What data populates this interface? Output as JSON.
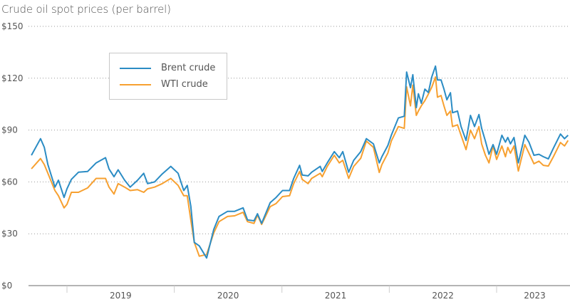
{
  "chart_data": {
    "type": "line",
    "title": "Crude oil spot prices (per barrel)",
    "xlabel": "",
    "ylabel": "",
    "ylim": [
      0,
      150
    ],
    "yticks": [
      0,
      30,
      60,
      90,
      120,
      150
    ],
    "ytick_labels": [
      "$0",
      "$30",
      "$60",
      "$90",
      "$120",
      "$150"
    ],
    "xlim": [
      "2018-08-25",
      "2023-09-05"
    ],
    "xtick_labels": [
      "2019",
      "2020",
      "2021",
      "2022",
      "2023"
    ],
    "grid": "horizontal-dotted",
    "legend_placement": "top-left",
    "dates": [
      "2018-09-02",
      "2018-10-03",
      "2018-10-16",
      "2018-10-28",
      "2018-11-21",
      "2018-12-03",
      "2018-12-22",
      "2019-01-01",
      "2019-01-16",
      "2019-02-09",
      "2019-03-12",
      "2019-04-10",
      "2019-05-12",
      "2019-05-24",
      "2019-06-10",
      "2019-06-24",
      "2019-07-16",
      "2019-08-04",
      "2019-08-29",
      "2019-09-19",
      "2019-10-02",
      "2019-10-26",
      "2019-11-21",
      "2019-12-20",
      "2020-01-14",
      "2020-02-02",
      "2020-02-14",
      "2020-02-26",
      "2020-03-09",
      "2020-03-26",
      "2020-04-20",
      "2020-05-14",
      "2020-06-01",
      "2020-06-30",
      "2020-07-24",
      "2020-08-22",
      "2020-09-06",
      "2020-09-28",
      "2020-10-10",
      "2020-10-24",
      "2020-11-22",
      "2020-12-12",
      "2021-01-03",
      "2021-01-27",
      "2021-02-10",
      "2021-03-02",
      "2021-03-11",
      "2021-03-31",
      "2021-04-12",
      "2021-05-11",
      "2021-05-18",
      "2021-06-04",
      "2021-06-28",
      "2021-07-15",
      "2021-07-27",
      "2021-08-16",
      "2021-09-02",
      "2021-09-26",
      "2021-10-15",
      "2021-11-08",
      "2021-11-28",
      "2021-12-07",
      "2021-12-27",
      "2022-01-08",
      "2022-02-01",
      "2022-02-21",
      "2022-03-01",
      "2022-03-14",
      "2022-03-22",
      "2022-04-03",
      "2022-04-10",
      "2022-04-20",
      "2022-05-02",
      "2022-05-14",
      "2022-05-26",
      "2022-06-07",
      "2022-06-14",
      "2022-06-26",
      "2022-07-06",
      "2022-07-16",
      "2022-07-28",
      "2022-08-04",
      "2022-08-21",
      "2022-09-02",
      "2022-09-19",
      "2022-10-04",
      "2022-10-18",
      "2022-11-02",
      "2022-11-11",
      "2022-11-24",
      "2022-12-06",
      "2022-12-20",
      "2023-01-01",
      "2023-01-19",
      "2023-01-31",
      "2023-02-08",
      "2023-02-17",
      "2023-03-01",
      "2023-03-16",
      "2023-04-07",
      "2023-04-21",
      "2023-05-08",
      "2023-05-25",
      "2023-06-09",
      "2023-06-26",
      "2023-07-13",
      "2023-08-06",
      "2023-08-20",
      "2023-09-01"
    ],
    "series": [
      {
        "name": "Brent crude",
        "color": "#2b8cc4",
        "values": [
          75.4,
          85,
          80,
          70,
          57,
          61,
          51,
          56,
          61.5,
          65.6,
          66,
          71,
          74,
          67.5,
          63,
          67,
          61,
          57,
          61,
          65,
          59,
          60,
          64.6,
          69,
          65,
          55,
          58,
          46,
          25,
          23,
          16,
          32.5,
          40,
          43,
          43,
          45,
          38,
          37.5,
          41.6,
          36,
          48,
          51,
          55,
          55,
          62,
          69.6,
          64,
          63.5,
          65.6,
          69,
          66,
          71,
          77.5,
          74,
          77.5,
          65.6,
          72.5,
          77.5,
          85,
          82,
          71,
          74.6,
          81,
          87,
          97,
          98,
          123.6,
          114.5,
          122,
          103,
          111,
          105.5,
          113.7,
          111.7,
          121,
          127,
          119,
          119,
          113.7,
          107.5,
          111.6,
          100,
          101,
          92,
          84,
          98.5,
          92,
          99,
          91,
          83.6,
          76,
          81.6,
          76,
          87,
          83,
          85.7,
          82,
          85.7,
          71,
          87,
          83,
          75.4,
          76,
          74.6,
          73.3,
          79.5,
          87.7,
          85,
          87
        ]
      },
      {
        "name": "WTI crude",
        "color": "#f7a030",
        "values": [
          67.6,
          73.5,
          70,
          65,
          55,
          52,
          45,
          47,
          54,
          54,
          56.5,
          62,
          62,
          57,
          53,
          59,
          57,
          55,
          55.5,
          54,
          56,
          57,
          59,
          62,
          58,
          52,
          52,
          38,
          25,
          17,
          18,
          30.5,
          37,
          40,
          40.4,
          42.4,
          37,
          36,
          40.8,
          35.4,
          45.7,
          47.5,
          51.5,
          52,
          59,
          66,
          61.4,
          59,
          62,
          65,
          63,
          69,
          75.4,
          71,
          72.5,
          62,
          69,
          73.7,
          83.6,
          80,
          65.5,
          70,
          76.6,
          83.6,
          92,
          91,
          115,
          104,
          116,
          98.5,
          101,
          104,
          107,
          110.8,
          115,
          120.7,
          109,
          110,
          104,
          98.5,
          101,
          92,
          93,
          87,
          78.7,
          90,
          85,
          92,
          82,
          75.4,
          71,
          80.8,
          73,
          80.8,
          74.6,
          80,
          76.6,
          80.8,
          66.3,
          81.6,
          76.6,
          70.5,
          72,
          69.6,
          69.2,
          74.6,
          82.8,
          80.8,
          84
        ]
      }
    ]
  }
}
